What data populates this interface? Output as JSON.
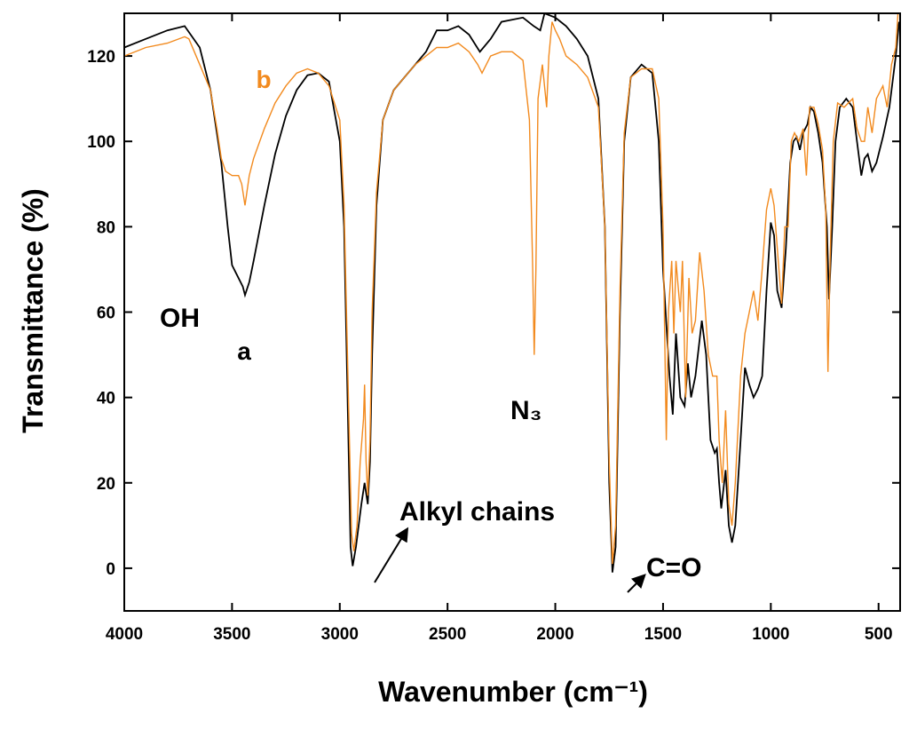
{
  "chart_data": {
    "type": "line",
    "xlabel": "Wavenumber (cm⁻¹)",
    "ylabel": "Transmittance (%)",
    "xlim": [
      4000,
      400
    ],
    "ylim": [
      -10,
      130
    ],
    "xticks": [
      4000,
      3500,
      3000,
      2500,
      2000,
      1500,
      1000,
      500
    ],
    "yticks": [
      0,
      20,
      40,
      60,
      80,
      100,
      120
    ],
    "annotations": [
      "OH",
      "N₃",
      "Alkyl chains",
      "C=O"
    ],
    "series": [
      {
        "name": "a",
        "color": "#000000",
        "x": [
          4000,
          3900,
          3800,
          3720,
          3650,
          3600,
          3550,
          3520,
          3500,
          3480,
          3450,
          3440,
          3420,
          3400,
          3350,
          3300,
          3250,
          3200,
          3150,
          3100,
          3050,
          3000,
          2980,
          2960,
          2950,
          2940,
          2925,
          2900,
          2885,
          2870,
          2860,
          2850,
          2830,
          2800,
          2750,
          2700,
          2650,
          2600,
          2550,
          2500,
          2450,
          2400,
          2350,
          2300,
          2250,
          2150,
          2100,
          2070,
          2050,
          2000,
          1950,
          1900,
          1850,
          1800,
          1770,
          1750,
          1735,
          1720,
          1700,
          1680,
          1650,
          1600,
          1550,
          1520,
          1500,
          1470,
          1455,
          1440,
          1420,
          1400,
          1385,
          1370,
          1350,
          1320,
          1300,
          1280,
          1260,
          1250,
          1240,
          1230,
          1210,
          1195,
          1180,
          1165,
          1140,
          1120,
          1100,
          1080,
          1060,
          1040,
          1020,
          1000,
          985,
          970,
          950,
          930,
          910,
          895,
          880,
          865,
          850,
          830,
          815,
          800,
          780,
          760,
          740,
          730,
          715,
          700,
          680,
          650,
          620,
          600,
          580,
          565,
          550,
          530,
          510,
          480,
          450,
          420,
          405
        ],
        "values": [
          122,
          124,
          126,
          127,
          122,
          112,
          95,
          80,
          71,
          69,
          66,
          64,
          67,
          72,
          85,
          97,
          106,
          112,
          115.5,
          116,
          114,
          100,
          80,
          30,
          5,
          0.5,
          5,
          15,
          20,
          15,
          25,
          50,
          85,
          105,
          112,
          115,
          118,
          121,
          126,
          126,
          127,
          125,
          121,
          124,
          128,
          129,
          127,
          126,
          130,
          129,
          127,
          124,
          120,
          110,
          80,
          20,
          -1,
          5,
          60,
          100,
          115,
          118,
          116,
          100,
          70,
          45,
          36,
          55,
          40,
          38,
          48,
          40,
          45,
          58,
          50,
          30,
          27,
          28,
          20,
          14,
          23,
          10,
          6,
          10,
          30,
          47,
          43,
          40,
          42,
          45,
          65,
          81,
          78,
          65,
          61,
          75,
          95,
          100,
          101,
          98,
          102,
          104,
          108,
          107,
          102,
          95,
          80,
          63,
          80,
          100,
          108,
          110,
          108,
          100,
          92,
          96,
          97,
          93,
          95,
          101,
          108,
          120,
          128
        ]
      },
      {
        "name": "b",
        "color": "#f28a1e",
        "x": [
          4000,
          3900,
          3800,
          3720,
          3700,
          3650,
          3600,
          3570,
          3550,
          3530,
          3500,
          3470,
          3455,
          3440,
          3420,
          3400,
          3350,
          3300,
          3250,
          3200,
          3150,
          3100,
          3050,
          3000,
          2980,
          2960,
          2945,
          2935,
          2920,
          2905,
          2890,
          2885,
          2878,
          2870,
          2860,
          2850,
          2830,
          2800,
          2750,
          2700,
          2650,
          2600,
          2550,
          2500,
          2450,
          2400,
          2360,
          2340,
          2300,
          2250,
          2200,
          2150,
          2120,
          2105,
          2098,
          2090,
          2080,
          2060,
          2050,
          2040,
          2030,
          2015,
          2000,
          1980,
          1950,
          1900,
          1850,
          1800,
          1770,
          1750,
          1735,
          1720,
          1700,
          1680,
          1650,
          1600,
          1550,
          1520,
          1500,
          1485,
          1475,
          1460,
          1450,
          1440,
          1420,
          1410,
          1395,
          1380,
          1365,
          1350,
          1330,
          1310,
          1290,
          1270,
          1250,
          1240,
          1225,
          1210,
          1195,
          1180,
          1165,
          1140,
          1120,
          1100,
          1080,
          1060,
          1040,
          1020,
          1000,
          985,
          970,
          950,
          935,
          920,
          905,
          890,
          870,
          850,
          835,
          820,
          800,
          780,
          760,
          745,
          735,
          725,
          710,
          690,
          660,
          620,
          600,
          580,
          565,
          550,
          530,
          510,
          480,
          460,
          440,
          420,
          410
        ],
        "values": [
          120,
          122,
          123,
          124.5,
          124,
          118,
          112,
          103,
          96,
          93,
          92,
          92,
          90,
          85,
          92,
          96,
          103,
          109,
          113,
          116,
          117,
          116,
          113,
          105,
          85,
          40,
          8,
          4,
          10,
          25,
          35,
          43,
          25,
          17,
          30,
          60,
          88,
          105,
          112,
          115,
          118,
          120,
          122,
          122,
          123,
          121,
          118,
          116,
          120,
          121,
          121,
          119,
          105,
          70,
          50,
          70,
          110,
          118,
          113,
          108,
          120,
          128,
          126,
          124,
          120,
          118,
          115,
          108,
          80,
          25,
          1,
          10,
          65,
          102,
          115,
          117,
          117,
          110,
          80,
          30,
          60,
          72,
          55,
          72,
          60,
          72,
          40,
          68,
          55,
          58,
          74,
          65,
          50,
          45,
          45,
          30,
          20,
          37,
          15,
          10,
          20,
          45,
          55,
          60,
          65,
          58,
          70,
          84,
          89,
          85,
          75,
          62,
          80,
          80,
          100,
          102,
          100,
          103,
          92,
          108,
          108,
          104,
          98,
          84,
          46,
          72,
          100,
          109,
          108,
          110,
          103,
          100,
          100,
          108,
          102,
          110,
          113,
          108,
          118,
          122,
          130
        ]
      }
    ]
  }
}
